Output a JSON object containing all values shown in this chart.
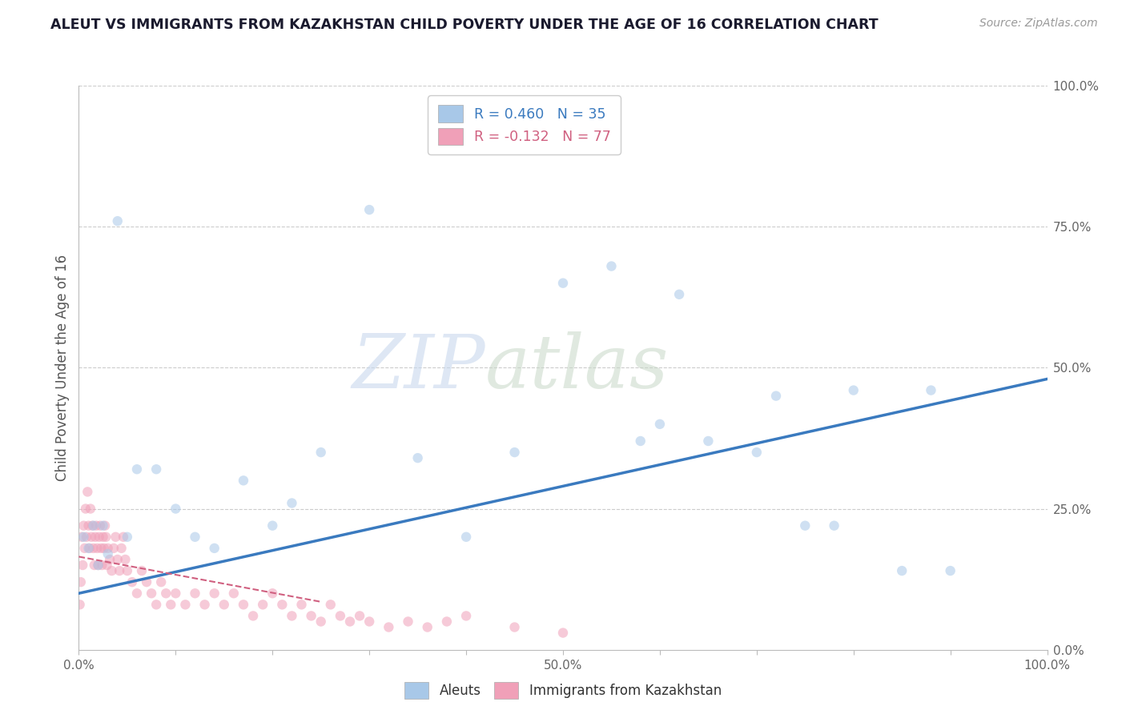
{
  "title": "ALEUT VS IMMIGRANTS FROM KAZAKHSTAN CHILD POVERTY UNDER THE AGE OF 16 CORRELATION CHART",
  "source": "Source: ZipAtlas.com",
  "ylabel": "Child Poverty Under the Age of 16",
  "xlabel": "",
  "aleut_R": 0.46,
  "aleut_N": 35,
  "kaz_R": -0.132,
  "kaz_N": 77,
  "aleut_color": "#a8c8e8",
  "aleut_line_color": "#3a7abf",
  "kaz_color": "#f0a0b8",
  "kaz_line_color": "#d06080",
  "watermark_zip": "ZIP",
  "watermark_atlas": "atlas",
  "background_color": "#ffffff",
  "aleut_x": [
    0.005,
    0.01,
    0.015,
    0.02,
    0.025,
    0.03,
    0.04,
    0.05,
    0.06,
    0.08,
    0.1,
    0.12,
    0.14,
    0.17,
    0.2,
    0.22,
    0.25,
    0.3,
    0.35,
    0.4,
    0.45,
    0.5,
    0.55,
    0.58,
    0.6,
    0.62,
    0.65,
    0.7,
    0.72,
    0.75,
    0.78,
    0.8,
    0.85,
    0.88,
    0.9
  ],
  "aleut_y": [
    0.2,
    0.18,
    0.22,
    0.15,
    0.22,
    0.17,
    0.76,
    0.2,
    0.32,
    0.32,
    0.25,
    0.2,
    0.18,
    0.3,
    0.22,
    0.26,
    0.35,
    0.78,
    0.34,
    0.2,
    0.35,
    0.65,
    0.68,
    0.37,
    0.4,
    0.63,
    0.37,
    0.35,
    0.45,
    0.22,
    0.22,
    0.46,
    0.14,
    0.46,
    0.14
  ],
  "kaz_x_raw": [
    0.001,
    0.002,
    0.003,
    0.004,
    0.005,
    0.006,
    0.007,
    0.008,
    0.009,
    0.01,
    0.011,
    0.012,
    0.013,
    0.014,
    0.015,
    0.016,
    0.017,
    0.018,
    0.019,
    0.02,
    0.021,
    0.022,
    0.023,
    0.024,
    0.025,
    0.026,
    0.027,
    0.028,
    0.029,
    0.03,
    0.032,
    0.034,
    0.036,
    0.038,
    0.04,
    0.042,
    0.044,
    0.046,
    0.048,
    0.05,
    0.055,
    0.06,
    0.065,
    0.07,
    0.075,
    0.08,
    0.085,
    0.09,
    0.095,
    0.1,
    0.11,
    0.12,
    0.13,
    0.14,
    0.15,
    0.16,
    0.17,
    0.18,
    0.19,
    0.2,
    0.21,
    0.22,
    0.23,
    0.24,
    0.25,
    0.26,
    0.27,
    0.28,
    0.29,
    0.3,
    0.32,
    0.34,
    0.36,
    0.38,
    0.4,
    0.45,
    0.5
  ],
  "kaz_y_raw": [
    0.08,
    0.12,
    0.2,
    0.15,
    0.22,
    0.18,
    0.25,
    0.2,
    0.28,
    0.22,
    0.18,
    0.25,
    0.2,
    0.22,
    0.18,
    0.15,
    0.2,
    0.22,
    0.18,
    0.15,
    0.2,
    0.22,
    0.18,
    0.15,
    0.2,
    0.18,
    0.22,
    0.2,
    0.15,
    0.18,
    0.16,
    0.14,
    0.18,
    0.2,
    0.16,
    0.14,
    0.18,
    0.2,
    0.16,
    0.14,
    0.12,
    0.1,
    0.14,
    0.12,
    0.1,
    0.08,
    0.12,
    0.1,
    0.08,
    0.1,
    0.08,
    0.1,
    0.08,
    0.1,
    0.08,
    0.1,
    0.08,
    0.06,
    0.08,
    0.1,
    0.08,
    0.06,
    0.08,
    0.06,
    0.05,
    0.08,
    0.06,
    0.05,
    0.06,
    0.05,
    0.04,
    0.05,
    0.04,
    0.05,
    0.06,
    0.04,
    0.03
  ],
  "aleut_trend_x": [
    0.0,
    1.0
  ],
  "aleut_trend_y": [
    0.1,
    0.48
  ],
  "kaz_trend_x": [
    0.0,
    0.2
  ],
  "kaz_trend_y": [
    0.16,
    0.1
  ],
  "xlim": [
    0,
    1.0
  ],
  "ylim": [
    0,
    1.0
  ],
  "xticks": [
    0.0,
    0.1,
    0.2,
    0.3,
    0.4,
    0.5,
    0.6,
    0.7,
    0.8,
    0.9,
    1.0
  ],
  "xtick_labels_sparse": [
    "0.0%",
    "",
    "",
    "",
    "",
    "50.0%",
    "",
    "",
    "",
    "",
    "100.0%"
  ],
  "ytick_labels": [
    "0.0%",
    "25.0%",
    "50.0%",
    "75.0%",
    "100.0%"
  ],
  "yticks": [
    0.0,
    0.25,
    0.5,
    0.75,
    1.0
  ],
  "legend_aleut_label": "R = 0.460   N = 35",
  "legend_kaz_label": "R = -0.132   N = 77",
  "marker_size": 80,
  "marker_alpha": 0.55,
  "title_color": "#1a1a2e",
  "axis_label_color": "#555555",
  "grid_color": "#cccccc",
  "tick_label_color": "#666666"
}
